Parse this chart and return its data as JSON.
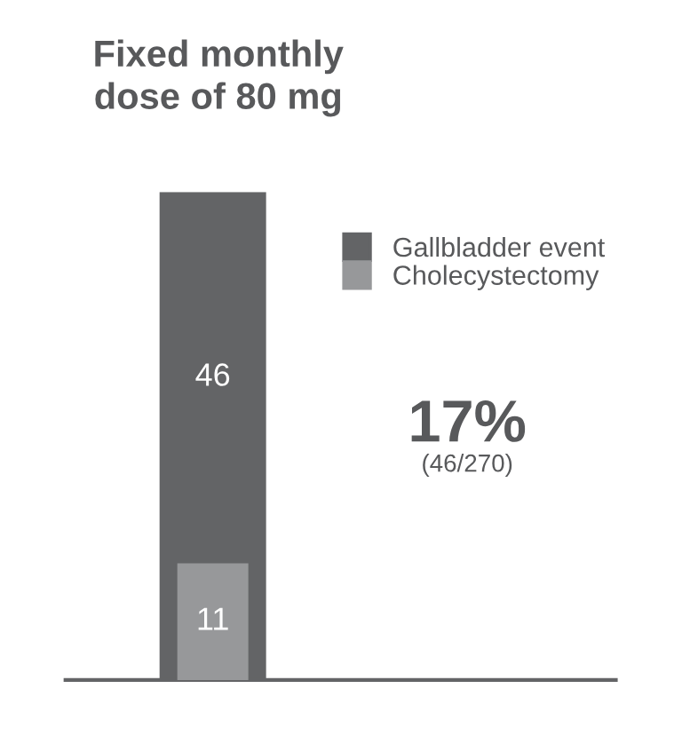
{
  "chart_data": {
    "type": "bar",
    "title": "Fixed monthly\ndose of 80 mg",
    "categories": [
      null
    ],
    "series": [
      {
        "name": "Gallbladder event",
        "color": "#636466",
        "values": [
          46
        ]
      },
      {
        "name": "Cholecystectomy",
        "color": "#97989a",
        "values": [
          11
        ]
      }
    ],
    "data_labels": true,
    "legend": "top right",
    "grid": false,
    "annotations": [
      "17%",
      "(46/270)"
    ]
  }
}
